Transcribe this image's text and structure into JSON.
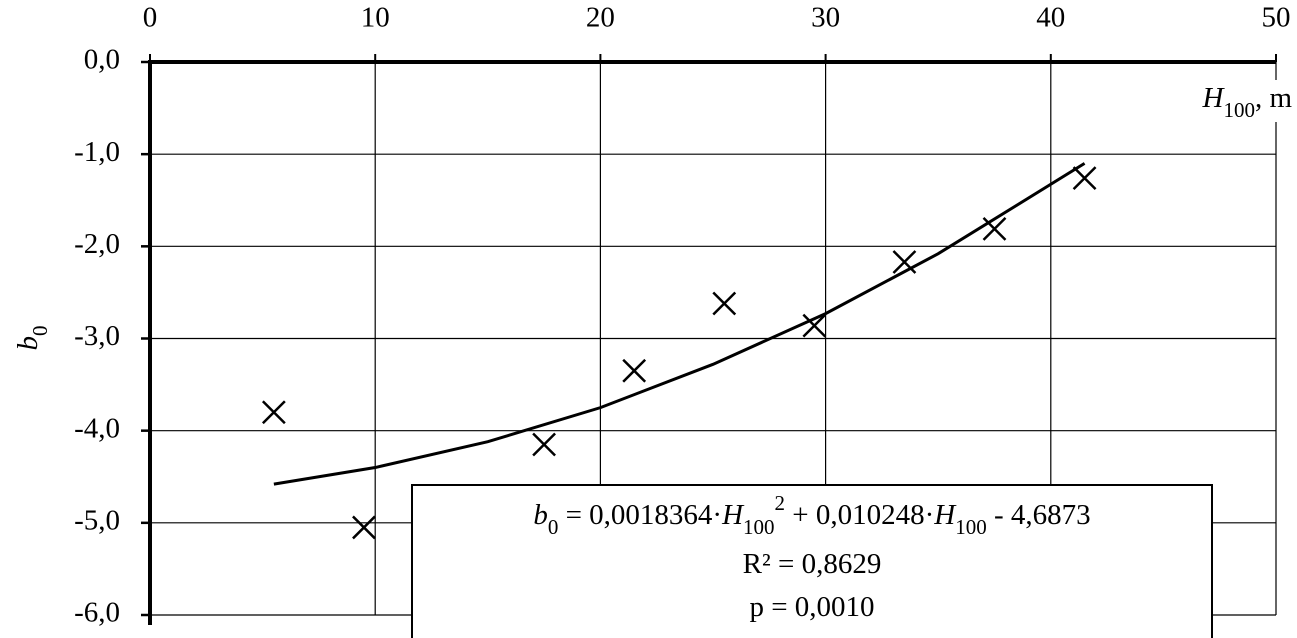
{
  "chart_data": {
    "type": "scatter",
    "x_label": [
      {
        "text": "H",
        "style": "italic"
      },
      {
        "text": "100",
        "style": "sub"
      },
      {
        "text": ", m",
        "style": "normal"
      }
    ],
    "y_label": [
      {
        "text": "b",
        "style": "italic"
      },
      {
        "text": "0",
        "style": "sub"
      }
    ],
    "xlim": [
      0,
      50
    ],
    "xticks": [
      0,
      10,
      20,
      30,
      40,
      50
    ],
    "ylim": [
      -6,
      0
    ],
    "yticks": [
      {
        "value": 0,
        "label": "0,0"
      },
      {
        "value": -1,
        "label": "-1,0"
      },
      {
        "value": -2,
        "label": "-2,0"
      },
      {
        "value": -3,
        "label": "-3,0"
      },
      {
        "value": -4,
        "label": "-4,0"
      },
      {
        "value": -5,
        "label": "-5,0"
      },
      {
        "value": -6,
        "label": "-6,0"
      }
    ],
    "grid": true,
    "series": [
      {
        "type": "scatter",
        "color": "#000000",
        "x": [
          5.5,
          9.5,
          17.5,
          21.5,
          25.5,
          29.5,
          33.5,
          37.5,
          41.5
        ],
        "values": [
          -3.8,
          -5.05,
          -4.15,
          -3.35,
          -2.62,
          -2.86,
          -2.17,
          -1.81,
          -1.26
        ]
      },
      {
        "type": "line",
        "color": "#000000",
        "x": [
          5.5,
          10,
          15,
          20,
          25,
          30,
          35,
          41.5
        ],
        "values": [
          -4.58,
          -4.4,
          -4.12,
          -3.75,
          -3.28,
          -2.73,
          -2.08,
          -1.1
        ]
      }
    ],
    "annotation": [
      [
        {
          "text": "b",
          "style": "italic"
        },
        {
          "text": "0",
          "style": "sub"
        },
        {
          "text": " = 0,0018364·",
          "style": "normal"
        },
        {
          "text": "H",
          "style": "italic"
        },
        {
          "text": "100",
          "style": "sub"
        },
        {
          "text": "2",
          "style": "sup"
        },
        {
          "text": " + 0,010248·",
          "style": "normal"
        },
        {
          "text": "H",
          "style": "italic"
        },
        {
          "text": "100",
          "style": "sub"
        },
        {
          "text": " - 4,6873",
          "style": "normal"
        }
      ],
      [
        {
          "text": "R² = 0,8629",
          "style": "normal"
        }
      ],
      [
        {
          "text": "p = 0,0010",
          "style": "normal"
        }
      ]
    ]
  }
}
